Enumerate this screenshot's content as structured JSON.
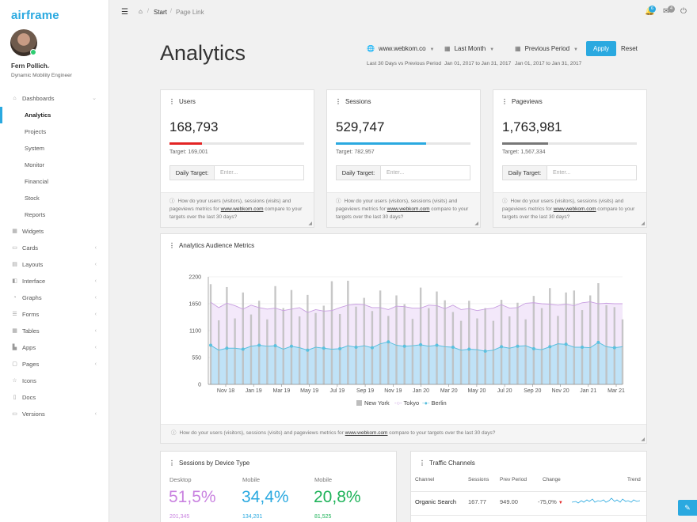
{
  "brand": "airframe",
  "user": {
    "name": "Fern Pollich",
    "role": "Dynamic Mobility Engineer"
  },
  "sidebar": {
    "items": [
      {
        "label": "Dashboards",
        "icon": "home-icon",
        "chevron": true,
        "level": 0
      },
      {
        "label": "Analytics",
        "level": 1,
        "active": true
      },
      {
        "label": "Projects",
        "level": 1
      },
      {
        "label": "System",
        "level": 1
      },
      {
        "label": "Monitor",
        "level": 1
      },
      {
        "label": "Financial",
        "level": 1
      },
      {
        "label": "Stock",
        "level": 1
      },
      {
        "label": "Reports",
        "level": 1
      },
      {
        "label": "Widgets",
        "icon": "widgets-icon",
        "level": 0
      },
      {
        "label": "Cards",
        "icon": "cards-icon",
        "chevron": true,
        "level": 0
      },
      {
        "label": "Layouts",
        "icon": "layouts-icon",
        "chevron": true,
        "level": 0
      },
      {
        "label": "Interface",
        "icon": "interface-icon",
        "chevron": true,
        "level": 0
      },
      {
        "label": "Graphs",
        "icon": "graphs-icon",
        "chevron": true,
        "level": 0
      },
      {
        "label": "Forms",
        "icon": "forms-icon",
        "chevron": true,
        "level": 0
      },
      {
        "label": "Tables",
        "icon": "tables-icon",
        "chevron": true,
        "level": 0
      },
      {
        "label": "Apps",
        "icon": "apps-icon",
        "chevron": true,
        "level": 0
      },
      {
        "label": "Pages",
        "icon": "pages-icon",
        "chevron": true,
        "level": 0
      },
      {
        "label": "Icons",
        "icon": "icons-icon",
        "level": 0
      },
      {
        "label": "Docs",
        "icon": "docs-icon",
        "level": 0
      },
      {
        "label": "Versions",
        "icon": "versions-icon",
        "chevron": true,
        "level": 0
      }
    ]
  },
  "topbar": {
    "breadcrumb": [
      "Start",
      "Page Link"
    ],
    "notifications_count": "6",
    "messages_count": "4"
  },
  "page": {
    "title": "Analytics",
    "filters": {
      "site": "www.webkom.co",
      "period": "Last Month",
      "compare": "Previous Period"
    },
    "apply_label": "Apply",
    "reset_label": "Reset",
    "range": {
      "label": "Last 30 Days vs Previous Period",
      "current": "Jan 01, 2017 to Jan 31, 2017",
      "previous": "Jan 01, 2017 to Jan 31, 2017"
    }
  },
  "metrics": [
    {
      "title": "Users",
      "value": "168,793",
      "target": "Target: 169,001",
      "progress": 0.24,
      "color": "#e32424"
    },
    {
      "title": "Sessions",
      "value": "529,747",
      "target": "Target: 782,957",
      "progress": 0.67,
      "color": "#2aa9e0"
    },
    {
      "title": "Pageviews",
      "value": "1,763,981",
      "target": "Target: 1,567,334",
      "progress": 0.34,
      "color": "#777777"
    }
  ],
  "metric_common": {
    "daily_target_label": "Daily Target:",
    "input_placeholder": "Enter...",
    "foot_pre": "How do your users (visitors), sessions (visits) and pageviews metrics for ",
    "foot_link": "www.webkom.com",
    "foot_post": " compare to your targets over the last 30 days?"
  },
  "audience": {
    "title": "Analytics Audience Metrics",
    "foot_pre": "How do your users (visitors), sessions (visits) and pageviews metrics for ",
    "foot_link": "www.webkom.com",
    "foot_post": " compare to your targets over the last 30 days?"
  },
  "chart_data": {
    "type": "bar",
    "ylim": [
      0,
      2200
    ],
    "yticks": [
      "0",
      "550",
      "1100",
      "1650",
      "2200"
    ],
    "xticks": [
      "Nov 18",
      "Jan 19",
      "Mar 19",
      "May 19",
      "Jul 19",
      "Sep 19",
      "Nov 19",
      "Jan 20",
      "Mar 20",
      "May 20",
      "Jul 20",
      "Sep 20",
      "Nov 20",
      "Jan 21",
      "Mar 21"
    ],
    "series": [
      {
        "name": "New York",
        "type": "bar",
        "color": "#bdbdbd",
        "values": [
          2050,
          1310,
          1990,
          1350,
          1880,
          1430,
          1710,
          1330,
          2010,
          1560,
          1930,
          1390,
          1830,
          1460,
          1610,
          2110,
          1440,
          2120,
          1590,
          1770,
          1500,
          1920,
          1400,
          1820,
          1640,
          1340,
          1980,
          1560,
          1900,
          1720,
          1480,
          1300,
          1710,
          1350,
          1560,
          1300,
          1730,
          1390,
          1670,
          1330,
          1810,
          1560,
          1970,
          1400,
          1880,
          1920,
          1520,
          1820,
          2070,
          1620,
          1580,
          1330
        ]
      },
      {
        "name": "Tokyo",
        "type": "line",
        "color": "#c89ee0",
        "values": [
          1680,
          1570,
          1660,
          1610,
          1540,
          1620,
          1570,
          1540,
          1560,
          1510,
          1540,
          1570,
          1470,
          1530,
          1500,
          1510,
          1570,
          1620,
          1640,
          1630,
          1570,
          1570,
          1530,
          1600,
          1590,
          1560,
          1560,
          1620,
          1610,
          1550,
          1620,
          1530,
          1550,
          1510,
          1540,
          1560,
          1630,
          1560,
          1570,
          1660,
          1670,
          1650,
          1640,
          1620,
          1640,
          1610,
          1670,
          1690,
          1650,
          1660,
          1650,
          1650
        ]
      },
      {
        "name": "Berlin",
        "type": "area",
        "color": "#5bc0de",
        "values": [
          800,
          700,
          740,
          740,
          720,
          780,
          800,
          780,
          790,
          720,
          780,
          750,
          700,
          760,
          740,
          720,
          730,
          790,
          760,
          790,
          750,
          830,
          870,
          800,
          780,
          790,
          810,
          780,
          800,
          770,
          760,
          700,
          720,
          710,
          680,
          700,
          770,
          740,
          780,
          790,
          730,
          710,
          770,
          830,
          820,
          760,
          760,
          750,
          860,
          770,
          750,
          770
        ]
      }
    ]
  },
  "device": {
    "title": "Sessions by Device Type",
    "items": [
      {
        "label": "Desktop",
        "value": "51,5%",
        "count": "201,345",
        "color": "#c982e0"
      },
      {
        "label": "Mobile",
        "value": "34,4%",
        "count": "134,201",
        "color": "#2aa9e0"
      },
      {
        "label": "Mobile",
        "value": "20,8%",
        "count": "81,525",
        "color": "#1fb35a"
      }
    ]
  },
  "traffic": {
    "title": "Traffic Channels",
    "columns": [
      "Channel",
      "Sessions",
      "Prev Period",
      "Change",
      "Trend"
    ],
    "rows": [
      {
        "channel": "Organic Search",
        "sessions": "167.77",
        "prev": "949.00",
        "change": "-75,0%"
      }
    ]
  }
}
